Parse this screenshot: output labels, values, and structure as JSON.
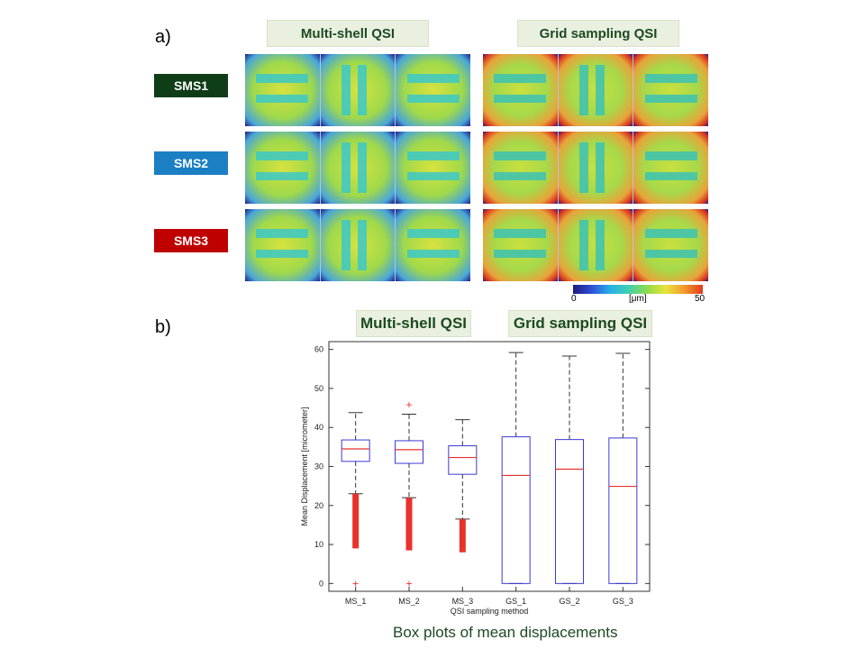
{
  "panel_a": {
    "label": "a)",
    "headers": [
      "Multi-shell QSI",
      "Grid sampling QSI"
    ],
    "rows": [
      {
        "label": "SMS1",
        "color": "#0f3d17"
      },
      {
        "label": "SMS2",
        "color": "#1b7fc4"
      },
      {
        "label": "SMS3",
        "color": "#c00000"
      }
    ],
    "colorbar": {
      "min": "0",
      "unit": "[μm]",
      "max": "50"
    }
  },
  "panel_b": {
    "label": "b)",
    "headers": [
      "Multi-shell QSI",
      "Grid sampling QSI"
    ],
    "caption": "Box plots of mean displacements"
  },
  "chart_data": {
    "type": "box",
    "title": "",
    "xlabel": "QSI sampling method",
    "ylabel": "Mean Displacement [micrometer]",
    "ylim": [
      -2,
      62
    ],
    "yticks": [
      0,
      10,
      20,
      30,
      40,
      50,
      60
    ],
    "categories": [
      "MS_1",
      "MS_2",
      "MS_3",
      "GS_1",
      "GS_2",
      "GS_3"
    ],
    "boxes": [
      {
        "min": 23,
        "q1": 31.3,
        "median": 34.5,
        "q3": 36.8,
        "max": 43.8,
        "outliers_range": [
          9,
          23
        ],
        "outliers": [
          0
        ]
      },
      {
        "min": 22,
        "q1": 30.8,
        "median": 34.3,
        "q3": 36.6,
        "max": 43.4,
        "outliers_range": [
          8.5,
          22
        ],
        "outliers": [
          0,
          45.8
        ]
      },
      {
        "min": 16.5,
        "q1": 28,
        "median": 32.3,
        "q3": 35.3,
        "max": 42,
        "outliers_range": [
          8,
          16.5
        ],
        "outliers": []
      },
      {
        "min": 0,
        "q1": 0,
        "median": 27.7,
        "q3": 37.6,
        "max": 59.2,
        "outliers_range": null,
        "outliers": []
      },
      {
        "min": 0,
        "q1": 0,
        "median": 29.3,
        "q3": 36.9,
        "max": 58.3,
        "outliers_range": null,
        "outliers": []
      },
      {
        "min": 0,
        "q1": 0,
        "median": 24.9,
        "q3": 37.3,
        "max": 59.0,
        "outliers_range": null,
        "outliers": []
      }
    ],
    "colors": {
      "box": "#3b3bd6",
      "median": "#e8322c",
      "outlier": "#e8322c",
      "whisker": "#333333"
    }
  }
}
